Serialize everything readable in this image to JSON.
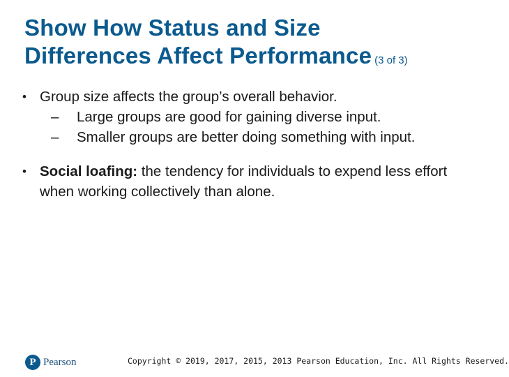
{
  "slide": {
    "title_line1": "Show How Status and Size",
    "title_line2": "Differences Affect Performance",
    "title_suffix": "(3 of 3)",
    "bullets": [
      {
        "marker": "•",
        "text": "Group size affects the group’s overall behavior.",
        "sub": [
          {
            "marker": "–",
            "text": "Large groups are good for gaining diverse input."
          },
          {
            "marker": "–",
            "text": "Smaller groups are better doing something with input."
          }
        ]
      },
      {
        "marker": "•",
        "term": "Social loafing:",
        "text": " the tendency for individuals to expend less effort when working collectively than alone."
      }
    ]
  },
  "footer": {
    "logo_letter": "P",
    "logo_text": "Pearson",
    "copyright": "Copyright © 2019, 2017, 2015, 2013 Pearson Education, Inc. All Rights Reserved."
  },
  "colors": {
    "title": "#0b5a8e",
    "body_text": "#1a1a1a",
    "logo": "#0b5a8e"
  }
}
